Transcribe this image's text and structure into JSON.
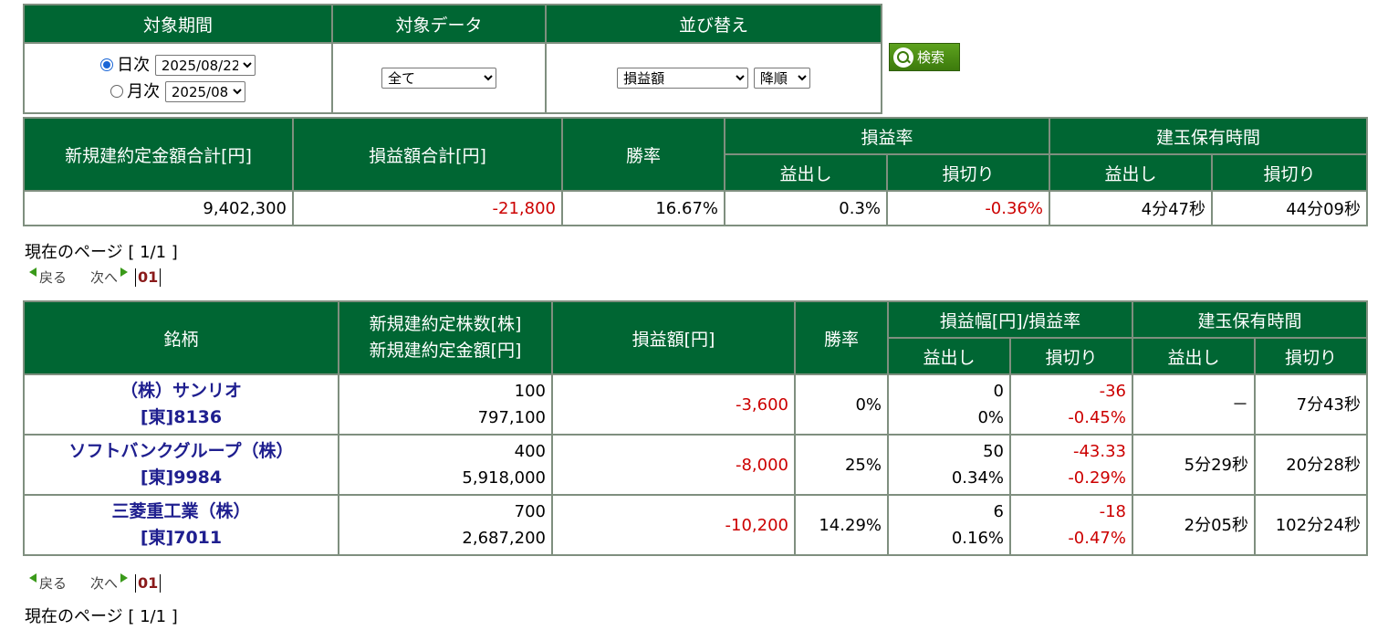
{
  "search": {
    "headers": [
      "対象期間",
      "対象データ",
      "並び替え"
    ],
    "daily_label": "日次",
    "daily_value": "2025/08/22",
    "monthly_label": "月次",
    "monthly_value": "2025/08",
    "data_select": "全て",
    "sort_field": "損益額",
    "sort_order": "降順",
    "button_label": "検索"
  },
  "summary": {
    "headers": {
      "total_amount": "新規建約定金額合計[円]",
      "total_pl": "損益額合計[円]",
      "win_rate": "勝率",
      "pl_rate": "損益率",
      "hold_time": "建玉保有時間",
      "profit": "益出し",
      "loss": "損切り"
    },
    "values": {
      "total_amount": "9,402,300",
      "total_pl": "-21,800",
      "win_rate": "16.67%",
      "rate_profit": "0.3%",
      "rate_loss": "-0.36%",
      "time_profit": "4分47秒",
      "time_loss": "44分09秒"
    }
  },
  "pager": {
    "page_info": "現在のページ [ 1/1 ]",
    "prev": "戻る",
    "next": "次へ",
    "page": "01"
  },
  "results": {
    "headers": {
      "stock": "銘柄",
      "qty_line1": "新規建約定株数[株]",
      "qty_line2": "新規建約定金額[円]",
      "pl": "損益額[円]",
      "win_rate": "勝率",
      "range": "損益幅[円]/損益率",
      "hold_time": "建玉保有時間",
      "profit": "益出し",
      "loss": "損切り"
    },
    "rows": [
      {
        "name": "（株）サンリオ",
        "code": "[東]8136",
        "qty": "100",
        "amount": "797,100",
        "pl": "-3,600",
        "win": "0%",
        "p_w": "0",
        "p_r": "0%",
        "l_w": "-36",
        "l_r": "-0.45%",
        "t_p": "－",
        "t_l": "7分43秒"
      },
      {
        "name": "ソフトバンクグループ（株）",
        "code": "[東]9984",
        "qty": "400",
        "amount": "5,918,000",
        "pl": "-8,000",
        "win": "25%",
        "p_w": "50",
        "p_r": "0.34%",
        "l_w": "-43.33",
        "l_r": "-0.29%",
        "t_p": "5分29秒",
        "t_l": "20分28秒"
      },
      {
        "name": "三菱重工業（株）",
        "code": "[東]7011",
        "qty": "700",
        "amount": "2,687,200",
        "pl": "-10,200",
        "win": "14.29%",
        "p_w": "6",
        "p_r": "0.16%",
        "l_w": "-18",
        "l_r": "-0.47%",
        "t_p": "2分05秒",
        "t_l": "102分24秒"
      }
    ]
  }
}
